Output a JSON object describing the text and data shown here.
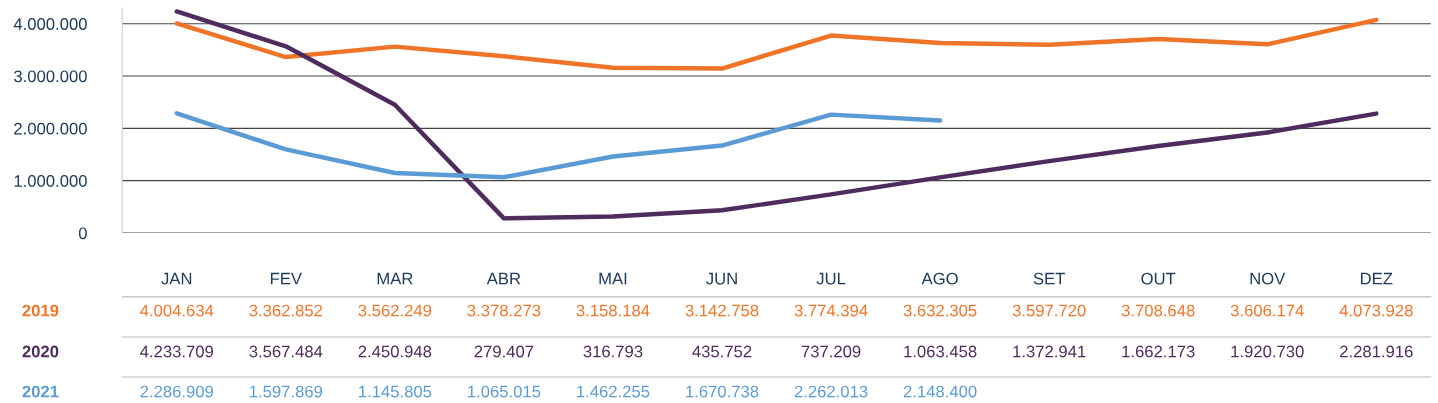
{
  "chart_data": {
    "type": "line",
    "categories": [
      "JAN",
      "FEV",
      "MAR",
      "ABR",
      "MAI",
      "JUN",
      "JUL",
      "AGO",
      "SET",
      "OUT",
      "NOV",
      "DEZ"
    ],
    "series": [
      {
        "name": "2019",
        "color": "#f07427",
        "values": [
          4004634,
          3362852,
          3562249,
          3378273,
          3158184,
          3142758,
          3774394,
          3632305,
          3597720,
          3708648,
          3606174,
          4073928
        ],
        "value_labels": [
          "4.004.634",
          "3.362.852",
          "3.562.249",
          "3.378.273",
          "3.158.184",
          "3.142.758",
          "3.774.394",
          "3.632.305",
          "3.597.720",
          "3.708.648",
          "3.606.174",
          "4.073.928"
        ]
      },
      {
        "name": "2020",
        "color": "#4f2c5e",
        "values": [
          4233709,
          3567484,
          2450948,
          279407,
          316793,
          435752,
          737209,
          1063458,
          1372941,
          1662173,
          1920730,
          2281916
        ],
        "value_labels": [
          "4.233.709",
          "3.567.484",
          "2.450.948",
          "279.407",
          "316.793",
          "435.752",
          "737.209",
          "1.063.458",
          "1.372.941",
          "1.662.173",
          "1.920.730",
          "2.281.916"
        ]
      },
      {
        "name": "2021",
        "color": "#5b9bd5",
        "values": [
          2286909,
          1597869,
          1145805,
          1065015,
          1462255,
          1670738,
          2262013,
          2148400,
          null,
          null,
          null,
          null
        ],
        "value_labels": [
          "2.286.909",
          "1.597.869",
          "1.145.805",
          "1.065.015",
          "1.462.255",
          "1.670.738",
          "2.262.013",
          "2.148.400",
          null,
          null,
          null,
          null
        ]
      }
    ],
    "ylim": [
      0,
      4300000
    ],
    "yticks": [
      0,
      {
        "value": 1000000,
        "label": "1.000.000"
      },
      {
        "value": 2000000,
        "label": "2.000.000"
      },
      {
        "value": 3000000,
        "label": "3.000.000"
      },
      {
        "value": 4000000,
        "label": "4.000.000"
      }
    ],
    "grid": "y",
    "legend": false,
    "marker": "none",
    "line_style": "solid"
  }
}
